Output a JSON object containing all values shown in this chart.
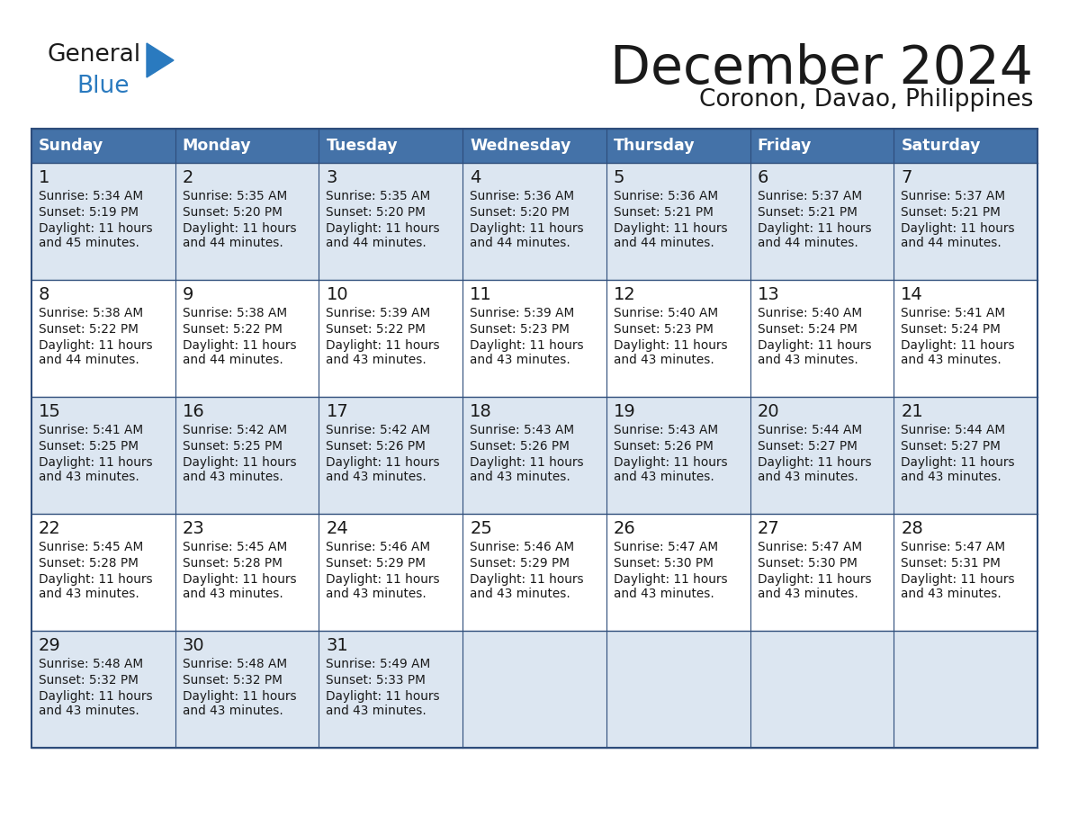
{
  "title": "December 2024",
  "subtitle": "Coronon, Davao, Philippines",
  "header_color": "#4472a8",
  "header_text_color": "#ffffff",
  "row_bg_odd": "#dce6f1",
  "row_bg_even": "#ffffff",
  "border_color": "#2e4d7b",
  "text_color": "#1a1a1a",
  "days_of_week": [
    "Sunday",
    "Monday",
    "Tuesday",
    "Wednesday",
    "Thursday",
    "Friday",
    "Saturday"
  ],
  "weeks": [
    [
      {
        "day": 1,
        "sunrise": "5:34 AM",
        "sunset": "5:19 PM",
        "daylight_line1": "11 hours",
        "daylight_line2": "and 45 minutes."
      },
      {
        "day": 2,
        "sunrise": "5:35 AM",
        "sunset": "5:20 PM",
        "daylight_line1": "11 hours",
        "daylight_line2": "and 44 minutes."
      },
      {
        "day": 3,
        "sunrise": "5:35 AM",
        "sunset": "5:20 PM",
        "daylight_line1": "11 hours",
        "daylight_line2": "and 44 minutes."
      },
      {
        "day": 4,
        "sunrise": "5:36 AM",
        "sunset": "5:20 PM",
        "daylight_line1": "11 hours",
        "daylight_line2": "and 44 minutes."
      },
      {
        "day": 5,
        "sunrise": "5:36 AM",
        "sunset": "5:21 PM",
        "daylight_line1": "11 hours",
        "daylight_line2": "and 44 minutes."
      },
      {
        "day": 6,
        "sunrise": "5:37 AM",
        "sunset": "5:21 PM",
        "daylight_line1": "11 hours",
        "daylight_line2": "and 44 minutes."
      },
      {
        "day": 7,
        "sunrise": "5:37 AM",
        "sunset": "5:21 PM",
        "daylight_line1": "11 hours",
        "daylight_line2": "and 44 minutes."
      }
    ],
    [
      {
        "day": 8,
        "sunrise": "5:38 AM",
        "sunset": "5:22 PM",
        "daylight_line1": "11 hours",
        "daylight_line2": "and 44 minutes."
      },
      {
        "day": 9,
        "sunrise": "5:38 AM",
        "sunset": "5:22 PM",
        "daylight_line1": "11 hours",
        "daylight_line2": "and 44 minutes."
      },
      {
        "day": 10,
        "sunrise": "5:39 AM",
        "sunset": "5:22 PM",
        "daylight_line1": "11 hours",
        "daylight_line2": "and 43 minutes."
      },
      {
        "day": 11,
        "sunrise": "5:39 AM",
        "sunset": "5:23 PM",
        "daylight_line1": "11 hours",
        "daylight_line2": "and 43 minutes."
      },
      {
        "day": 12,
        "sunrise": "5:40 AM",
        "sunset": "5:23 PM",
        "daylight_line1": "11 hours",
        "daylight_line2": "and 43 minutes."
      },
      {
        "day": 13,
        "sunrise": "5:40 AM",
        "sunset": "5:24 PM",
        "daylight_line1": "11 hours",
        "daylight_line2": "and 43 minutes."
      },
      {
        "day": 14,
        "sunrise": "5:41 AM",
        "sunset": "5:24 PM",
        "daylight_line1": "11 hours",
        "daylight_line2": "and 43 minutes."
      }
    ],
    [
      {
        "day": 15,
        "sunrise": "5:41 AM",
        "sunset": "5:25 PM",
        "daylight_line1": "11 hours",
        "daylight_line2": "and 43 minutes."
      },
      {
        "day": 16,
        "sunrise": "5:42 AM",
        "sunset": "5:25 PM",
        "daylight_line1": "11 hours",
        "daylight_line2": "and 43 minutes."
      },
      {
        "day": 17,
        "sunrise": "5:42 AM",
        "sunset": "5:26 PM",
        "daylight_line1": "11 hours",
        "daylight_line2": "and 43 minutes."
      },
      {
        "day": 18,
        "sunrise": "5:43 AM",
        "sunset": "5:26 PM",
        "daylight_line1": "11 hours",
        "daylight_line2": "and 43 minutes."
      },
      {
        "day": 19,
        "sunrise": "5:43 AM",
        "sunset": "5:26 PM",
        "daylight_line1": "11 hours",
        "daylight_line2": "and 43 minutes."
      },
      {
        "day": 20,
        "sunrise": "5:44 AM",
        "sunset": "5:27 PM",
        "daylight_line1": "11 hours",
        "daylight_line2": "and 43 minutes."
      },
      {
        "day": 21,
        "sunrise": "5:44 AM",
        "sunset": "5:27 PM",
        "daylight_line1": "11 hours",
        "daylight_line2": "and 43 minutes."
      }
    ],
    [
      {
        "day": 22,
        "sunrise": "5:45 AM",
        "sunset": "5:28 PM",
        "daylight_line1": "11 hours",
        "daylight_line2": "and 43 minutes."
      },
      {
        "day": 23,
        "sunrise": "5:45 AM",
        "sunset": "5:28 PM",
        "daylight_line1": "11 hours",
        "daylight_line2": "and 43 minutes."
      },
      {
        "day": 24,
        "sunrise": "5:46 AM",
        "sunset": "5:29 PM",
        "daylight_line1": "11 hours",
        "daylight_line2": "and 43 minutes."
      },
      {
        "day": 25,
        "sunrise": "5:46 AM",
        "sunset": "5:29 PM",
        "daylight_line1": "11 hours",
        "daylight_line2": "and 43 minutes."
      },
      {
        "day": 26,
        "sunrise": "5:47 AM",
        "sunset": "5:30 PM",
        "daylight_line1": "11 hours",
        "daylight_line2": "and 43 minutes."
      },
      {
        "day": 27,
        "sunrise": "5:47 AM",
        "sunset": "5:30 PM",
        "daylight_line1": "11 hours",
        "daylight_line2": "and 43 minutes."
      },
      {
        "day": 28,
        "sunrise": "5:47 AM",
        "sunset": "5:31 PM",
        "daylight_line1": "11 hours",
        "daylight_line2": "and 43 minutes."
      }
    ],
    [
      {
        "day": 29,
        "sunrise": "5:48 AM",
        "sunset": "5:32 PM",
        "daylight_line1": "11 hours",
        "daylight_line2": "and 43 minutes."
      },
      {
        "day": 30,
        "sunrise": "5:48 AM",
        "sunset": "5:32 PM",
        "daylight_line1": "11 hours",
        "daylight_line2": "and 43 minutes."
      },
      {
        "day": 31,
        "sunrise": "5:49 AM",
        "sunset": "5:33 PM",
        "daylight_line1": "11 hours",
        "daylight_line2": "and 43 minutes."
      },
      null,
      null,
      null,
      null
    ]
  ]
}
